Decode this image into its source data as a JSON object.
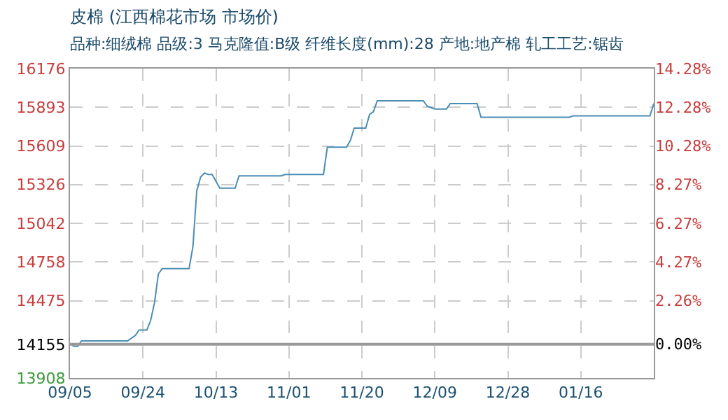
{
  "chart_data": {
    "type": "line",
    "title": "皮棉 (江西棉花市场 市场价)",
    "subtitle": "品种:细绒棉 品级:3 马克隆值:B级 纤维长度(mm):28 产地:地产棉 轧工工艺:锯齿",
    "categories": [
      "09/05",
      null,
      null,
      null,
      null,
      null,
      null,
      null,
      null,
      null,
      null,
      null,
      null,
      null,
      null,
      null,
      null,
      null,
      null,
      "09/24",
      null,
      null,
      null,
      null,
      null,
      null,
      null,
      null,
      null,
      null,
      null,
      null,
      null,
      null,
      null,
      null,
      null,
      null,
      "10/13",
      null,
      null,
      null,
      null,
      null,
      null,
      null,
      null,
      null,
      null,
      null,
      null,
      null,
      null,
      null,
      null,
      null,
      null,
      "11/01",
      null,
      null,
      null,
      null,
      null,
      null,
      null,
      null,
      null,
      null,
      null,
      null,
      null,
      null,
      null,
      null,
      null,
      null,
      "11/20",
      null,
      null,
      null,
      null,
      null,
      null,
      null,
      null,
      null,
      null,
      null,
      null,
      null,
      null,
      null,
      null,
      null,
      null,
      "12/09",
      null,
      null,
      null,
      null,
      null,
      null,
      null,
      null,
      null,
      null,
      null,
      null,
      null,
      null,
      null,
      null,
      null,
      null,
      "12/28",
      null,
      null,
      null,
      null,
      null,
      null,
      null,
      null,
      null,
      null,
      null,
      null,
      null,
      null,
      null,
      null,
      null,
      null,
      "01/16",
      null,
      null,
      null,
      null,
      null,
      null,
      null,
      null,
      null,
      null,
      null,
      null,
      null,
      null,
      null,
      null,
      null,
      null,
      null
    ],
    "series": [
      {
        "color": "#4a8db5",
        "values": [
          14160,
          14140,
          14140,
          14180,
          14180,
          14180,
          14180,
          14180,
          14180,
          14180,
          14180,
          14180,
          14180,
          14180,
          14180,
          14180,
          14200,
          14220,
          14260,
          14260,
          14260,
          14330,
          14460,
          14670,
          14710,
          14710,
          14710,
          14710,
          14710,
          14710,
          14710,
          14710,
          14870,
          15280,
          15380,
          15410,
          15400,
          15400,
          15350,
          15300,
          15300,
          15300,
          15300,
          15300,
          15390,
          15390,
          15390,
          15390,
          15390,
          15390,
          15390,
          15390,
          15390,
          15390,
          15390,
          15390,
          15400,
          15400,
          15400,
          15400,
          15400,
          15400,
          15400,
          15400,
          15400,
          15400,
          15400,
          15600,
          15600,
          15600,
          15600,
          15600,
          15600,
          15650,
          15740,
          15740,
          15740,
          15740,
          15840,
          15860,
          15940,
          15940,
          15940,
          15940,
          15940,
          15940,
          15940,
          15940,
          15940,
          15940,
          15940,
          15940,
          15940,
          15900,
          15890,
          15880,
          15880,
          15880,
          15880,
          15920,
          15920,
          15920,
          15920,
          15920,
          15920,
          15920,
          15920,
          15820,
          15820,
          15820,
          15820,
          15820,
          15820,
          15820,
          15820,
          15820,
          15820,
          15820,
          15820,
          15820,
          15820,
          15820,
          15820,
          15820,
          15820,
          15820,
          15820,
          15820,
          15820,
          15820,
          15820,
          15830,
          15830,
          15830,
          15830,
          15830,
          15830,
          15830,
          15830,
          15830,
          15830,
          15830,
          15830,
          15830,
          15830,
          15830,
          15830,
          15830,
          15830,
          15830,
          15830,
          15830,
          15920
        ]
      }
    ],
    "ylim": [
      13908,
      16176
    ],
    "yticks": [
      13908,
      14155,
      14475,
      14758,
      15042,
      15326,
      15609,
      15893,
      16176
    ],
    "y2lim": [
      -1.75,
      14.28
    ],
    "y2ticks": [
      {
        "value": 0,
        "label": "0.00%"
      },
      {
        "value": 2.26,
        "label": "2.26%"
      },
      {
        "value": 4.27,
        "label": "4.27%"
      },
      {
        "value": 6.27,
        "label": "6.27%"
      },
      {
        "value": 8.27,
        "label": "8.27%"
      },
      {
        "value": 10.28,
        "label": "10.28%"
      },
      {
        "value": 12.28,
        "label": "12.28%"
      },
      {
        "value": 14.28,
        "label": "14.28%"
      }
    ],
    "ref_lines": [
      {
        "axis": "y",
        "value": 14155,
        "color": "#999999"
      }
    ],
    "grid": true,
    "legend": false,
    "marker": "none",
    "line_style": "solid"
  }
}
